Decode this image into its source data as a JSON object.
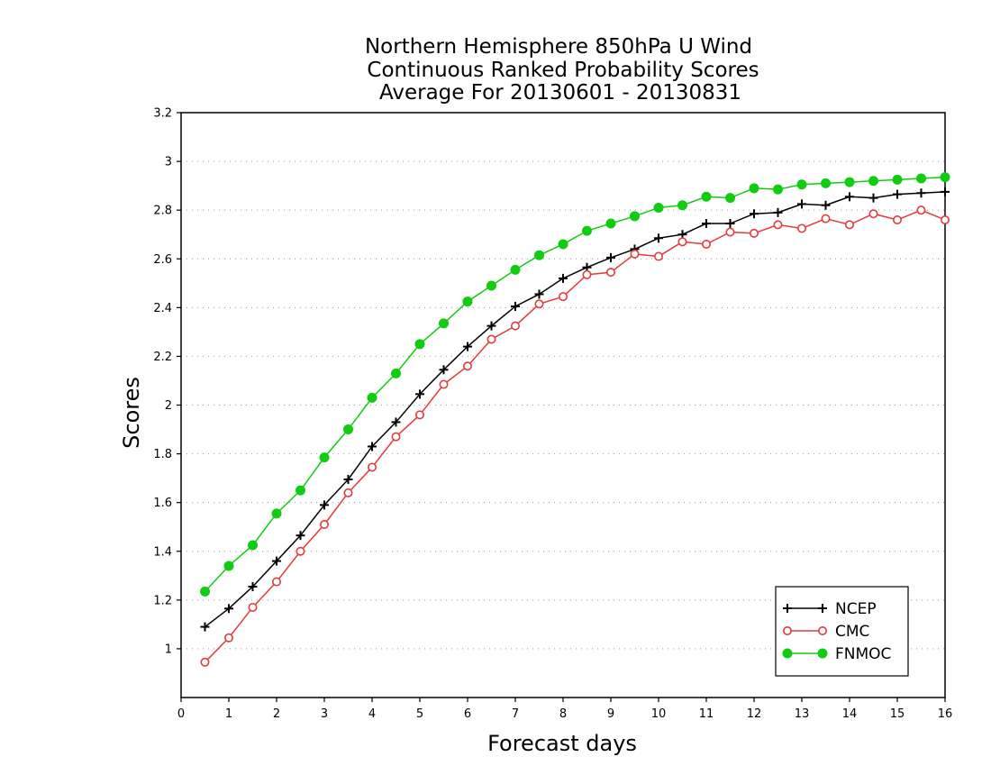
{
  "chart_data": {
    "type": "line",
    "title_lines": [
      "Northern Hemisphere 850hPa U Wind",
      "Continuous Ranked Probability Scores",
      "Average For 20130601 - 20130831"
    ],
    "xlabel": "Forecast days",
    "ylabel": "Scores",
    "xlim": [
      0,
      16
    ],
    "ylim": [
      0.8,
      3.2
    ],
    "xticks": [
      "0",
      "1",
      "2",
      "3",
      "4",
      "5",
      "6",
      "7",
      "8",
      "9",
      "10",
      "11",
      "12",
      "13",
      "14",
      "15",
      "16"
    ],
    "yticks": [
      "1",
      "1.2",
      "1.4",
      "1.6",
      "1.8",
      "2",
      "2.2",
      "2.4",
      "2.6",
      "2.8",
      "3",
      "3.2"
    ],
    "grid": true,
    "legend_position": "bottom-right",
    "x": [
      0.5,
      1,
      1.5,
      2,
      2.5,
      3,
      3.5,
      4,
      4.5,
      5,
      5.5,
      6,
      6.5,
      7,
      7.5,
      8,
      8.5,
      9,
      9.5,
      10,
      10.5,
      11,
      11.5,
      12,
      12.5,
      13,
      13.5,
      14,
      14.5,
      15,
      15.5,
      16
    ],
    "series": [
      {
        "name": "NCEP",
        "color": "#000000",
        "marker": "plus",
        "values": [
          1.09,
          1.165,
          1.255,
          1.36,
          1.465,
          1.59,
          1.695,
          1.83,
          1.93,
          2.045,
          2.145,
          2.24,
          2.325,
          2.405,
          2.455,
          2.52,
          2.565,
          2.605,
          2.64,
          2.685,
          2.7,
          2.745,
          2.745,
          2.785,
          2.79,
          2.825,
          2.82,
          2.855,
          2.85,
          2.865,
          2.87,
          2.875
        ]
      },
      {
        "name": "CMC",
        "color": "#e33a3a",
        "marker": "open-circle",
        "values": [
          0.945,
          1.045,
          1.17,
          1.275,
          1.4,
          1.51,
          1.64,
          1.745,
          1.87,
          1.96,
          2.085,
          2.16,
          2.27,
          2.325,
          2.415,
          2.445,
          2.535,
          2.545,
          2.62,
          2.61,
          2.67,
          2.66,
          2.71,
          2.705,
          2.74,
          2.725,
          2.765,
          2.74,
          2.785,
          2.76,
          2.8,
          2.76
        ]
      },
      {
        "name": "FNMOC",
        "color": "#11cc11",
        "marker": "filled-circle",
        "values": [
          1.235,
          1.34,
          1.425,
          1.555,
          1.65,
          1.785,
          1.9,
          2.03,
          2.13,
          2.25,
          2.335,
          2.425,
          2.49,
          2.555,
          2.615,
          2.66,
          2.715,
          2.745,
          2.775,
          2.81,
          2.82,
          2.855,
          2.85,
          2.89,
          2.885,
          2.905,
          2.91,
          2.915,
          2.92,
          2.925,
          2.93,
          2.935
        ]
      }
    ]
  }
}
